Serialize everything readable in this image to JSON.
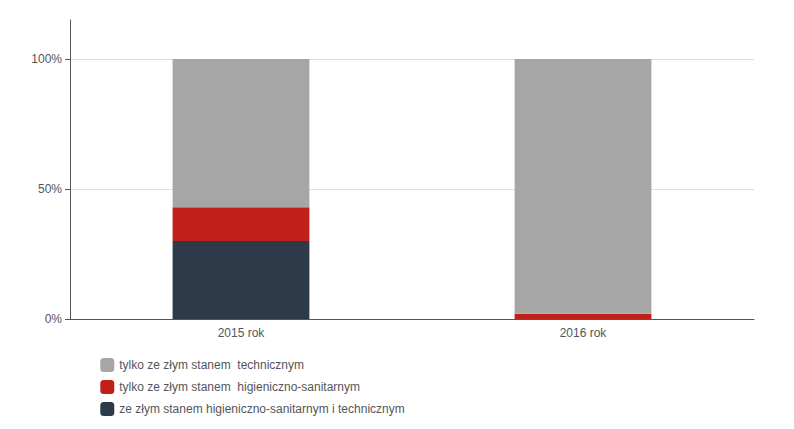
{
  "chart_data": {
    "type": "bar",
    "stacked": true,
    "categories": [
      "2015 rok",
      "2016 rok"
    ],
    "series": [
      {
        "name": "ze złym stanem higieniczno-sanitarnym i technicznym",
        "color": "#2d3a4a",
        "values": [
          30,
          0
        ]
      },
      {
        "name": "tylko ze złym stanem  higieniczno-sanitarnym",
        "color": "#c0201a",
        "values": [
          13,
          2
        ]
      },
      {
        "name": "tylko ze złym stanem  technicznym",
        "color": "#a6a6a6",
        "values": [
          57,
          98
        ]
      }
    ],
    "ylim": [
      0,
      115
    ],
    "yticks": [
      {
        "value": 0,
        "label": "0%"
      },
      {
        "value": 50,
        "label": "50%"
      },
      {
        "value": 100,
        "label": "100%"
      }
    ],
    "grid": true,
    "legend": "lower left"
  }
}
